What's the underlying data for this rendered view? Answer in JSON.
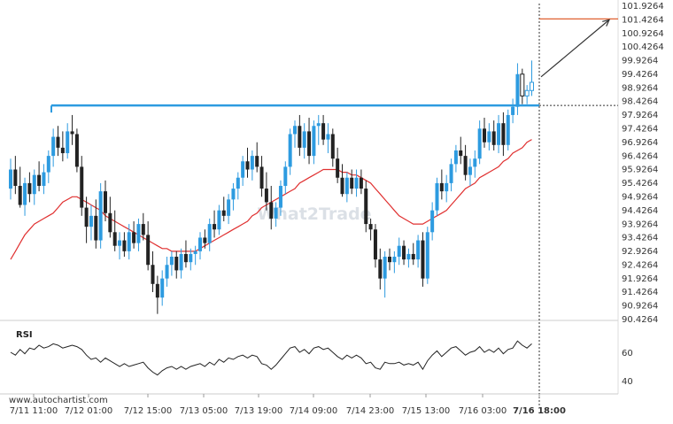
{
  "chart_data": {
    "type": "candlestick",
    "title": "",
    "watermark": "What2Trade",
    "source": "www.autochartist.com",
    "y_ticks": [
      "101.9264",
      "101.4264",
      "100.9264",
      "100.4264",
      "99.9264",
      "99.4264",
      "98.9264",
      "98.4264",
      "97.9264",
      "97.4264",
      "96.9264",
      "96.4264",
      "95.9264",
      "95.4264",
      "94.9264",
      "94.4264",
      "93.9264",
      "93.4264",
      "92.9264",
      "92.4264",
      "91.9264",
      "91.4264",
      "90.9264",
      "90.4264"
    ],
    "x_ticks": [
      "7/11 11:00",
      "7/12 01:00",
      "7/12 15:00",
      "7/13 05:00",
      "7/13 19:00",
      "7/14 09:00",
      "7/14 23:00",
      "7/15 13:00",
      "7/16 03:00",
      "7/16 18:00"
    ],
    "ylim": [
      90.2,
      102.2
    ],
    "colors": {
      "up": "#2d9be0",
      "down": "#222222",
      "ma": "#e03030",
      "resistance": "#2d9be0",
      "target": "#e06030",
      "arrow": "#333333",
      "rsi": "#222222"
    },
    "candles": [
      {
        "o": 95.2,
        "h": 96.3,
        "l": 94.8,
        "c": 95.9
      },
      {
        "o": 95.9,
        "h": 96.4,
        "l": 95.0,
        "c": 95.3
      },
      {
        "o": 95.3,
        "h": 96.0,
        "l": 94.5,
        "c": 94.6
      },
      {
        "o": 94.6,
        "h": 95.6,
        "l": 94.2,
        "c": 95.4
      },
      {
        "o": 95.4,
        "h": 95.8,
        "l": 94.7,
        "c": 95.0
      },
      {
        "o": 95.0,
        "h": 95.9,
        "l": 94.6,
        "c": 95.7
      },
      {
        "o": 95.7,
        "h": 96.2,
        "l": 95.1,
        "c": 95.3
      },
      {
        "o": 95.3,
        "h": 96.1,
        "l": 95.0,
        "c": 95.8
      },
      {
        "o": 95.8,
        "h": 96.6,
        "l": 95.4,
        "c": 96.4
      },
      {
        "o": 96.4,
        "h": 97.4,
        "l": 96.0,
        "c": 97.1
      },
      {
        "o": 97.1,
        "h": 97.5,
        "l": 96.4,
        "c": 96.7
      },
      {
        "o": 96.7,
        "h": 97.3,
        "l": 96.2,
        "c": 96.5
      },
      {
        "o": 96.5,
        "h": 97.6,
        "l": 96.3,
        "c": 97.3
      },
      {
        "o": 97.3,
        "h": 97.9,
        "l": 96.8,
        "c": 97.2
      },
      {
        "o": 97.2,
        "h": 97.4,
        "l": 95.8,
        "c": 96.0
      },
      {
        "o": 96.0,
        "h": 96.4,
        "l": 94.2,
        "c": 94.5
      },
      {
        "o": 94.5,
        "h": 94.9,
        "l": 93.2,
        "c": 93.8
      },
      {
        "o": 93.8,
        "h": 94.6,
        "l": 93.3,
        "c": 94.2
      },
      {
        "o": 94.2,
        "h": 94.8,
        "l": 93.0,
        "c": 93.3
      },
      {
        "o": 93.3,
        "h": 95.4,
        "l": 93.0,
        "c": 95.1
      },
      {
        "o": 95.1,
        "h": 95.5,
        "l": 94.0,
        "c": 94.3
      },
      {
        "o": 94.3,
        "h": 94.9,
        "l": 93.4,
        "c": 93.6
      },
      {
        "o": 93.6,
        "h": 94.4,
        "l": 92.9,
        "c": 93.1
      },
      {
        "o": 93.1,
        "h": 93.6,
        "l": 92.6,
        "c": 93.3
      },
      {
        "o": 93.3,
        "h": 93.6,
        "l": 92.7,
        "c": 92.9
      },
      {
        "o": 92.9,
        "h": 93.9,
        "l": 92.6,
        "c": 93.6
      },
      {
        "o": 93.6,
        "h": 94.0,
        "l": 93.0,
        "c": 93.2
      },
      {
        "o": 93.2,
        "h": 94.1,
        "l": 92.9,
        "c": 93.9
      },
      {
        "o": 93.9,
        "h": 94.3,
        "l": 93.3,
        "c": 93.5
      },
      {
        "o": 93.5,
        "h": 94.0,
        "l": 92.2,
        "c": 92.4
      },
      {
        "o": 92.4,
        "h": 92.9,
        "l": 91.4,
        "c": 91.7
      },
      {
        "o": 91.7,
        "h": 92.0,
        "l": 90.6,
        "c": 91.2
      },
      {
        "o": 91.2,
        "h": 92.2,
        "l": 90.9,
        "c": 91.9
      },
      {
        "o": 91.9,
        "h": 92.7,
        "l": 91.6,
        "c": 92.4
      },
      {
        "o": 92.4,
        "h": 92.9,
        "l": 92.0,
        "c": 92.7
      },
      {
        "o": 92.7,
        "h": 92.9,
        "l": 91.9,
        "c": 92.2
      },
      {
        "o": 92.2,
        "h": 93.0,
        "l": 91.9,
        "c": 92.8
      },
      {
        "o": 92.8,
        "h": 93.3,
        "l": 92.3,
        "c": 92.5
      },
      {
        "o": 92.5,
        "h": 93.0,
        "l": 92.2,
        "c": 92.8
      },
      {
        "o": 92.8,
        "h": 93.1,
        "l": 92.4,
        "c": 92.9
      },
      {
        "o": 92.9,
        "h": 93.6,
        "l": 92.6,
        "c": 93.4
      },
      {
        "o": 93.4,
        "h": 93.7,
        "l": 93.0,
        "c": 93.2
      },
      {
        "o": 93.2,
        "h": 94.1,
        "l": 92.9,
        "c": 93.9
      },
      {
        "o": 93.9,
        "h": 94.4,
        "l": 93.4,
        "c": 93.7
      },
      {
        "o": 93.7,
        "h": 94.6,
        "l": 93.5,
        "c": 94.4
      },
      {
        "o": 94.4,
        "h": 94.9,
        "l": 94.0,
        "c": 94.2
      },
      {
        "o": 94.2,
        "h": 95.0,
        "l": 93.9,
        "c": 94.8
      },
      {
        "o": 94.8,
        "h": 95.4,
        "l": 94.4,
        "c": 95.2
      },
      {
        "o": 95.2,
        "h": 95.8,
        "l": 94.8,
        "c": 95.6
      },
      {
        "o": 95.6,
        "h": 96.4,
        "l": 95.3,
        "c": 96.2
      },
      {
        "o": 96.2,
        "h": 96.7,
        "l": 95.6,
        "c": 95.9
      },
      {
        "o": 95.9,
        "h": 96.6,
        "l": 95.5,
        "c": 96.4
      },
      {
        "o": 96.4,
        "h": 96.9,
        "l": 95.8,
        "c": 96.0
      },
      {
        "o": 96.0,
        "h": 96.4,
        "l": 94.9,
        "c": 95.2
      },
      {
        "o": 95.2,
        "h": 95.8,
        "l": 94.4,
        "c": 94.7
      },
      {
        "o": 94.7,
        "h": 95.3,
        "l": 93.7,
        "c": 94.1
      },
      {
        "o": 94.1,
        "h": 94.7,
        "l": 93.8,
        "c": 94.5
      },
      {
        "o": 94.5,
        "h": 95.5,
        "l": 94.2,
        "c": 95.3
      },
      {
        "o": 95.3,
        "h": 96.2,
        "l": 95.0,
        "c": 96.0
      },
      {
        "o": 96.0,
        "h": 97.4,
        "l": 95.7,
        "c": 97.2
      },
      {
        "o": 97.2,
        "h": 97.7,
        "l": 96.7,
        "c": 97.5
      },
      {
        "o": 97.5,
        "h": 97.9,
        "l": 96.4,
        "c": 96.7
      },
      {
        "o": 96.7,
        "h": 97.6,
        "l": 96.3,
        "c": 97.3
      },
      {
        "o": 97.3,
        "h": 97.8,
        "l": 96.1,
        "c": 96.4
      },
      {
        "o": 96.4,
        "h": 97.7,
        "l": 96.1,
        "c": 97.5
      },
      {
        "o": 97.5,
        "h": 97.9,
        "l": 96.8,
        "c": 97.6
      },
      {
        "o": 97.6,
        "h": 97.9,
        "l": 96.8,
        "c": 97.0
      },
      {
        "o": 97.0,
        "h": 97.6,
        "l": 96.5,
        "c": 97.2
      },
      {
        "o": 97.2,
        "h": 97.4,
        "l": 96.0,
        "c": 96.3
      },
      {
        "o": 96.3,
        "h": 96.7,
        "l": 95.4,
        "c": 95.6
      },
      {
        "o": 95.6,
        "h": 96.1,
        "l": 94.9,
        "c": 95.0
      },
      {
        "o": 95.0,
        "h": 95.8,
        "l": 94.7,
        "c": 95.6
      },
      {
        "o": 95.6,
        "h": 95.9,
        "l": 95.0,
        "c": 95.2
      },
      {
        "o": 95.2,
        "h": 95.9,
        "l": 94.9,
        "c": 95.6
      },
      {
        "o": 95.6,
        "h": 95.9,
        "l": 95.0,
        "c": 95.2
      },
      {
        "o": 95.2,
        "h": 95.5,
        "l": 93.6,
        "c": 93.9
      },
      {
        "o": 93.9,
        "h": 94.1,
        "l": 93.3,
        "c": 93.7
      },
      {
        "o": 93.7,
        "h": 93.9,
        "l": 92.3,
        "c": 92.6
      },
      {
        "o": 92.6,
        "h": 93.0,
        "l": 91.5,
        "c": 91.9
      },
      {
        "o": 91.9,
        "h": 92.9,
        "l": 91.2,
        "c": 92.7
      },
      {
        "o": 92.7,
        "h": 93.0,
        "l": 92.2,
        "c": 92.5
      },
      {
        "o": 92.5,
        "h": 92.9,
        "l": 92.1,
        "c": 92.7
      },
      {
        "o": 92.7,
        "h": 93.4,
        "l": 92.4,
        "c": 93.1
      },
      {
        "o": 93.1,
        "h": 93.3,
        "l": 92.4,
        "c": 92.6
      },
      {
        "o": 92.6,
        "h": 93.0,
        "l": 92.3,
        "c": 92.8
      },
      {
        "o": 92.8,
        "h": 93.2,
        "l": 92.4,
        "c": 92.6
      },
      {
        "o": 92.6,
        "h": 93.5,
        "l": 92.3,
        "c": 93.3
      },
      {
        "o": 93.3,
        "h": 93.6,
        "l": 91.6,
        "c": 91.9
      },
      {
        "o": 91.9,
        "h": 93.8,
        "l": 91.7,
        "c": 93.6
      },
      {
        "o": 93.6,
        "h": 94.7,
        "l": 93.3,
        "c": 94.4
      },
      {
        "o": 94.4,
        "h": 95.6,
        "l": 94.2,
        "c": 95.4
      },
      {
        "o": 95.4,
        "h": 95.9,
        "l": 94.8,
        "c": 95.1
      },
      {
        "o": 95.1,
        "h": 95.7,
        "l": 94.7,
        "c": 95.4
      },
      {
        "o": 95.4,
        "h": 96.3,
        "l": 95.1,
        "c": 96.1
      },
      {
        "o": 96.1,
        "h": 96.8,
        "l": 95.8,
        "c": 96.6
      },
      {
        "o": 96.6,
        "h": 97.1,
        "l": 96.1,
        "c": 96.4
      },
      {
        "o": 96.4,
        "h": 96.8,
        "l": 95.5,
        "c": 95.7
      },
      {
        "o": 95.7,
        "h": 96.3,
        "l": 95.3,
        "c": 96.0
      },
      {
        "o": 96.0,
        "h": 96.6,
        "l": 95.6,
        "c": 96.3
      },
      {
        "o": 96.3,
        "h": 97.7,
        "l": 96.1,
        "c": 97.4
      },
      {
        "o": 97.4,
        "h": 97.8,
        "l": 96.7,
        "c": 96.9
      },
      {
        "o": 96.9,
        "h": 97.6,
        "l": 96.6,
        "c": 97.3
      },
      {
        "o": 97.3,
        "h": 97.7,
        "l": 96.6,
        "c": 96.8
      },
      {
        "o": 96.8,
        "h": 97.9,
        "l": 96.5,
        "c": 97.6
      },
      {
        "o": 97.6,
        "h": 98.0,
        "l": 96.4,
        "c": 96.8
      },
      {
        "o": 96.8,
        "h": 98.1,
        "l": 96.6,
        "c": 97.9
      },
      {
        "o": 97.9,
        "h": 98.5,
        "l": 97.6,
        "c": 98.2
      },
      {
        "o": 98.2,
        "h": 99.8,
        "l": 97.9,
        "c": 99.4
      },
      {
        "o": 99.4,
        "h": 99.6,
        "l": 98.3,
        "c": 98.6
      },
      {
        "o": 98.6,
        "h": 99.0,
        "l": 98.3,
        "c": 98.8
      },
      {
        "o": 98.8,
        "h": 99.9,
        "l": 98.6,
        "c": 99.1
      }
    ],
    "moving_average": [
      92.6,
      92.9,
      93.2,
      93.5,
      93.7,
      93.9,
      94.0,
      94.1,
      94.2,
      94.3,
      94.5,
      94.7,
      94.8,
      94.9,
      94.9,
      94.8,
      94.7,
      94.6,
      94.5,
      94.4,
      94.2,
      94.1,
      94.0,
      93.9,
      93.8,
      93.7,
      93.6,
      93.5,
      93.4,
      93.3,
      93.2,
      93.1,
      93.0,
      93.0,
      92.9,
      92.9,
      92.9,
      92.9,
      92.9,
      92.9,
      93.0,
      93.1,
      93.2,
      93.3,
      93.4,
      93.5,
      93.6,
      93.7,
      93.8,
      93.9,
      94.0,
      94.2,
      94.3,
      94.5,
      94.6,
      94.7,
      94.8,
      94.9,
      95.0,
      95.1,
      95.2,
      95.4,
      95.5,
      95.6,
      95.7,
      95.8,
      95.9,
      95.9,
      95.9,
      95.9,
      95.8,
      95.8,
      95.7,
      95.7,
      95.6,
      95.5,
      95.4,
      95.2,
      95.0,
      94.8,
      94.6,
      94.4,
      94.2,
      94.1,
      94.0,
      93.9,
      93.9,
      93.9,
      94.0,
      94.1,
      94.2,
      94.3,
      94.4,
      94.6,
      94.8,
      95.0,
      95.2,
      95.3,
      95.4,
      95.6,
      95.7,
      95.8,
      95.9,
      96.0,
      96.2,
      96.3,
      96.5,
      96.6,
      96.7,
      96.9,
      97.0
    ],
    "resistance_level": 98.25,
    "target_level": 101.4264,
    "rsi": {
      "label": "RSI",
      "ticks": [
        "60",
        "40"
      ],
      "ylim": [
        30,
        80
      ],
      "values": [
        60,
        58,
        62,
        59,
        63,
        62,
        65,
        63,
        64,
        66,
        65,
        63,
        64,
        65,
        64,
        62,
        58,
        55,
        56,
        53,
        56,
        54,
        52,
        50,
        52,
        50,
        51,
        52,
        53,
        49,
        46,
        44,
        47,
        49,
        50,
        48,
        50,
        48,
        50,
        51,
        52,
        50,
        53,
        51,
        55,
        53,
        56,
        55,
        57,
        58,
        56,
        58,
        57,
        52,
        51,
        48,
        51,
        55,
        59,
        63,
        64,
        60,
        62,
        59,
        63,
        64,
        62,
        63,
        60,
        57,
        55,
        58,
        56,
        58,
        56,
        52,
        53,
        49,
        48,
        53,
        52,
        52,
        53,
        51,
        52,
        51,
        53,
        48,
        54,
        58,
        61,
        57,
        60,
        63,
        64,
        61,
        58,
        60,
        61,
        64,
        60,
        62,
        60,
        63,
        59,
        62,
        63,
        68,
        65,
        63,
        66
      ]
    }
  }
}
